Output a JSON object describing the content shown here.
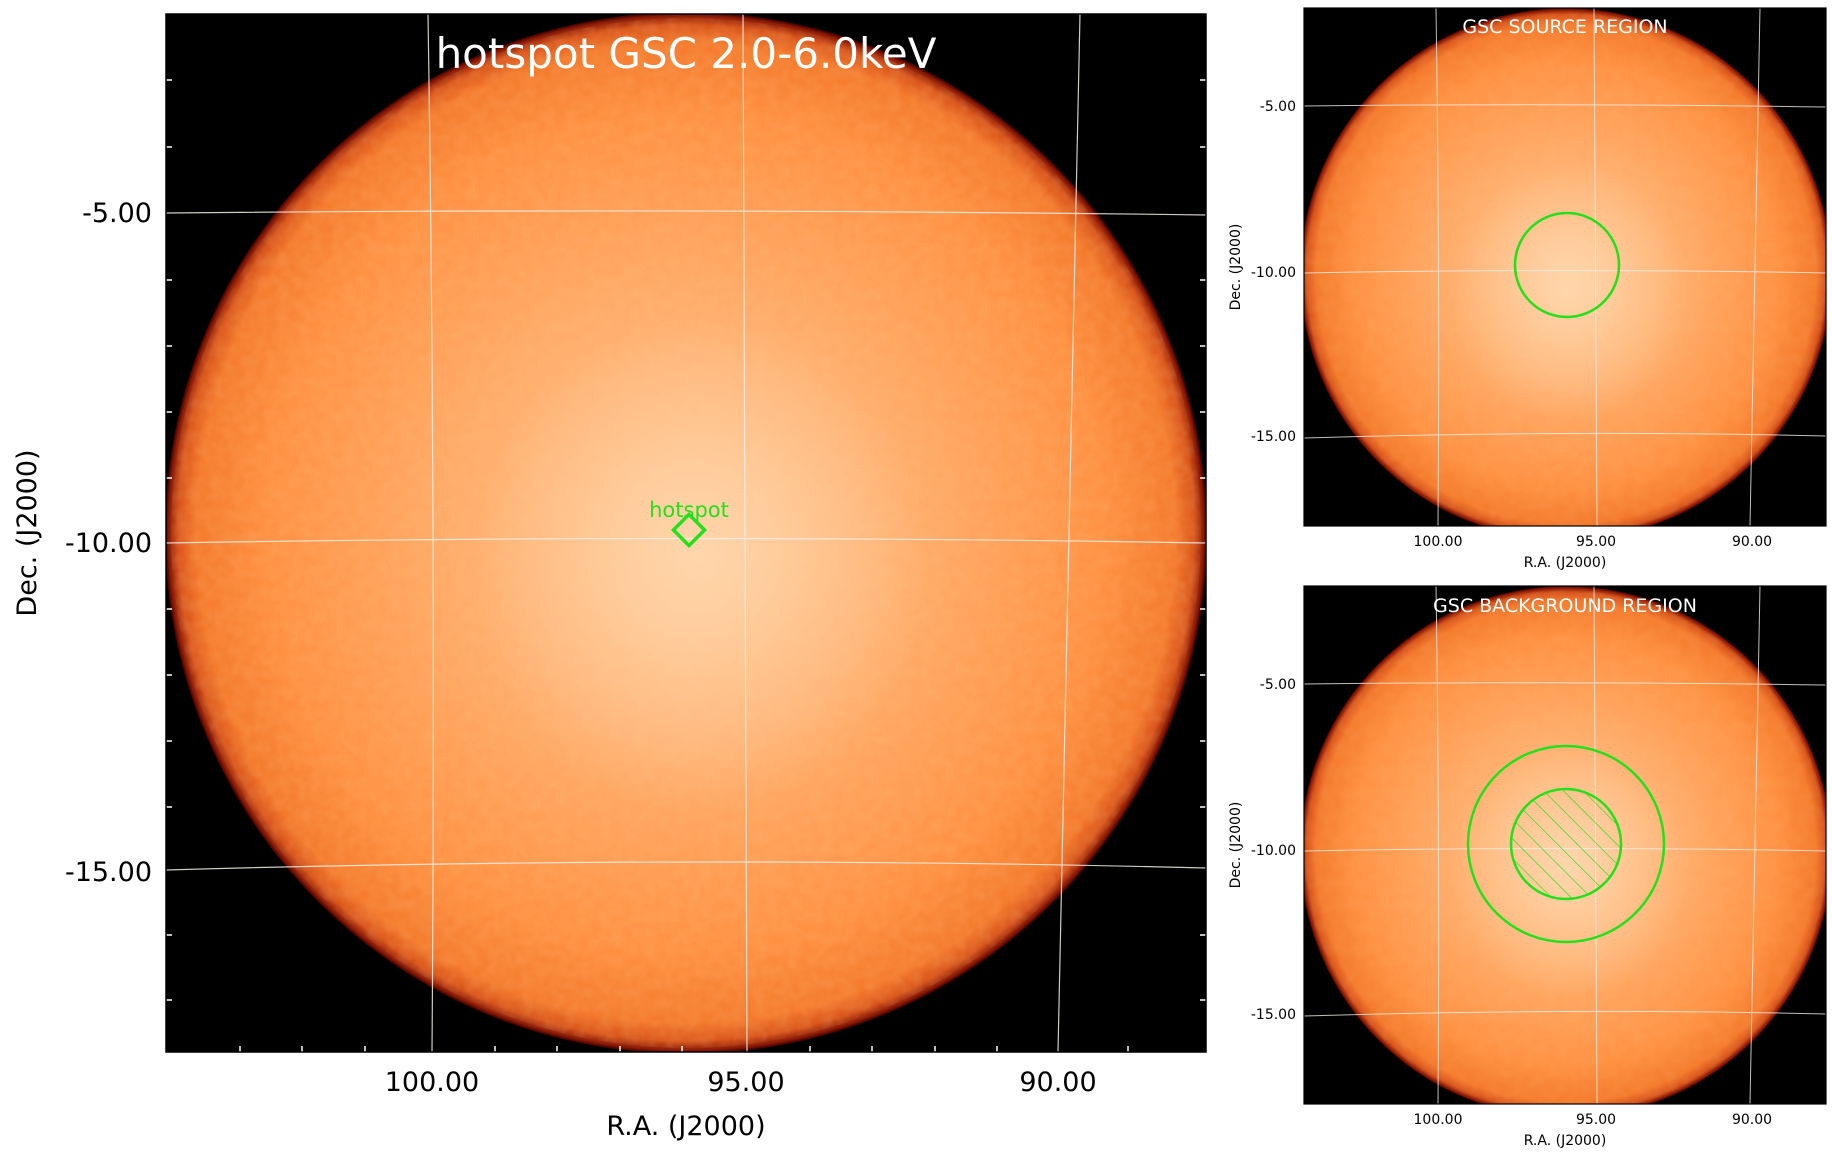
{
  "colors": {
    "background": "#ffffff",
    "frame_outside": "#000000",
    "disk_center": "#ffc48e",
    "disk_mid": "#ff9142",
    "disk_edge": "#e45a12",
    "disk_rim": "#6e0a02",
    "grid": "#f3efe8",
    "region": "#22e11a",
    "title": "#ffffff"
  },
  "main_panel": {
    "title": "hotspot GSC 2.0-6.0keV",
    "xlabel": "R.A. (J2000)",
    "ylabel": "Dec. (J2000)",
    "xticks": [
      "100.00",
      "95.00",
      "90.00"
    ],
    "yticks": [
      "-5.00",
      "-10.00",
      "-15.00"
    ],
    "marker_label": "hotspot",
    "marker_icon": "diamond-marker-icon"
  },
  "source_panel": {
    "title": "GSC SOURCE REGION",
    "xlabel": "R.A. (J2000)",
    "ylabel": "Dec. (J2000)",
    "xticks": [
      "100.00",
      "95.00",
      "90.00"
    ],
    "yticks": [
      "-5.00",
      "-10.00",
      "-15.00"
    ],
    "region": "circle"
  },
  "background_panel": {
    "title": "GSC BACKGROUND REGION",
    "xlabel": "R.A. (J2000)",
    "ylabel": "Dec. (J2000)",
    "xticks": [
      "100.00",
      "95.00",
      "90.00"
    ],
    "yticks": [
      "-5.00",
      "-10.00",
      "-15.00"
    ],
    "region": "annulus with hatched inner exclusion"
  }
}
